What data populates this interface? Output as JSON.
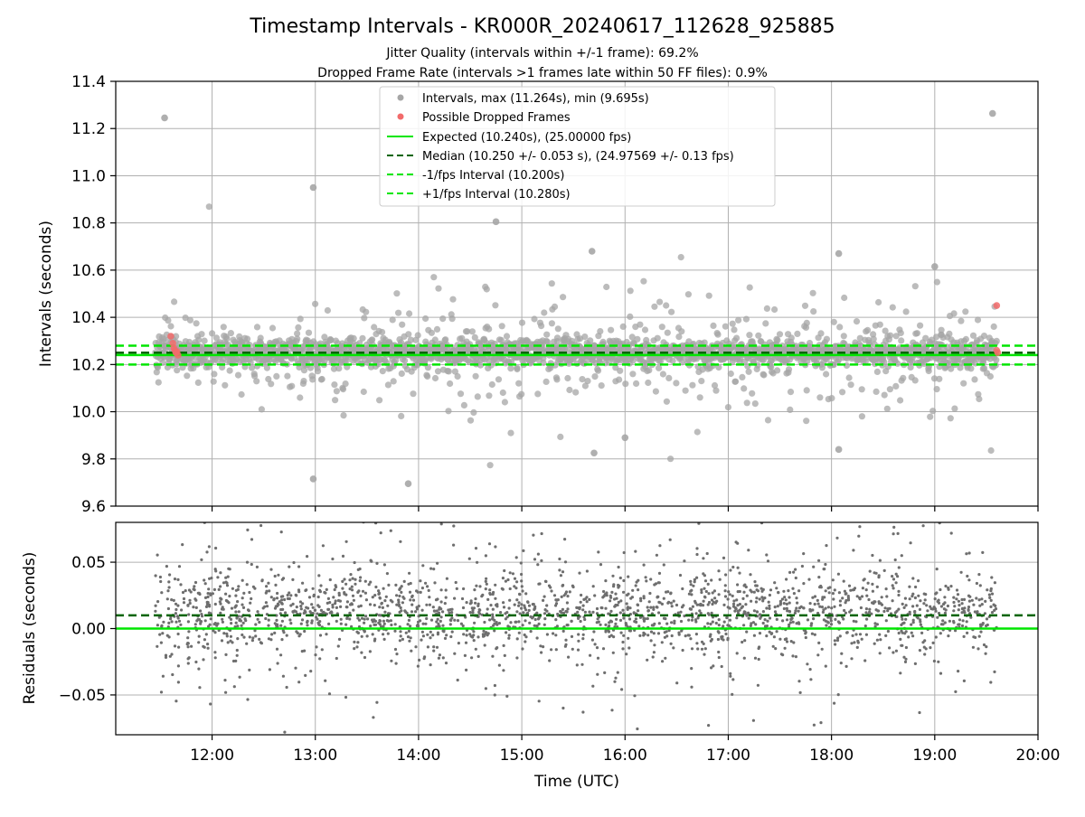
{
  "figure": {
    "title": "Timestamp Intervals - KR000R_20240617_112628_925885",
    "subtitle_1": "Jitter Quality (intervals within +/-1 frame): 69.2%",
    "subtitle_2": "Dropped Frame Rate (intervals >1 frames late within 50 FF files): 0.9%"
  },
  "chart_data": [
    {
      "type": "scatter",
      "panel": "top",
      "xlabel": "",
      "ylabel": "Intervals (seconds)",
      "xlim": [
        11.0667,
        20.0
      ],
      "ylim": [
        9.6,
        11.4
      ],
      "yticks": [
        9.6,
        9.8,
        10.0,
        10.2,
        10.4,
        10.6,
        10.8,
        11.0,
        11.2,
        11.4
      ],
      "ytick_labels": [
        "9.6",
        "9.8",
        "10.0",
        "10.2",
        "10.4",
        "10.6",
        "10.8",
        "11.0",
        "11.2",
        "11.4"
      ],
      "xticks": [
        12,
        13,
        14,
        15,
        16,
        17,
        18,
        19,
        20
      ],
      "xtick_labels": [
        "",
        "",
        "",
        "",
        "",
        "",
        "",
        "",
        ""
      ],
      "grid": true,
      "legend_position": "top-center",
      "data_start_hour": 11.45,
      "data_end_hour": 19.6,
      "intervals_stats": {
        "max": 11.264,
        "min": 9.695,
        "median": 10.25,
        "std": 0.053
      },
      "series": [
        {
          "name": "Intervals, max (11.264s), min (9.695s)",
          "kind": "scatter",
          "color": "#a6a6a6"
        },
        {
          "name": "Possible Dropped Frames",
          "kind": "scatter",
          "color": "#f26b6b"
        },
        {
          "name": "Expected (10.240s), (25.00000 fps)",
          "kind": "hline",
          "value": 10.24,
          "color": "#00e600",
          "style": "solid"
        },
        {
          "name": "Median (10.250 +/- 0.053 s), (24.97569 +/- 0.13 fps)",
          "kind": "hline",
          "value": 10.25,
          "color": "#006400",
          "style": "dashed"
        },
        {
          "name": "-1/fps Interval (10.200s)",
          "kind": "hline",
          "value": 10.2,
          "color": "#00e600",
          "style": "dashed"
        },
        {
          "name": "+1/fps Interval (10.280s)",
          "kind": "hline",
          "value": 10.28,
          "color": "#00e600",
          "style": "dashed"
        }
      ],
      "notable_points": [
        {
          "x": 11.54,
          "y": 11.245
        },
        {
          "x": 19.56,
          "y": 11.264
        },
        {
          "x": 12.98,
          "y": 10.95
        },
        {
          "x": 14.75,
          "y": 10.805
        },
        {
          "x": 13.9,
          "y": 9.695
        },
        {
          "x": 12.98,
          "y": 9.715
        },
        {
          "x": 18.07,
          "y": 10.67
        },
        {
          "x": 18.07,
          "y": 9.84
        },
        {
          "x": 19.0,
          "y": 10.615
        },
        {
          "x": 15.68,
          "y": 10.68
        },
        {
          "x": 15.7,
          "y": 9.825
        },
        {
          "x": 16.0,
          "y": 9.89
        }
      ],
      "dropped_frames": [
        {
          "x": 11.6,
          "y": 10.32
        },
        {
          "x": 11.62,
          "y": 10.29
        },
        {
          "x": 11.63,
          "y": 10.27
        },
        {
          "x": 11.64,
          "y": 10.26
        },
        {
          "x": 11.65,
          "y": 10.25
        },
        {
          "x": 11.66,
          "y": 10.255
        },
        {
          "x": 11.67,
          "y": 10.24
        },
        {
          "x": 19.6,
          "y": 10.45
        },
        {
          "x": 19.6,
          "y": 10.26
        },
        {
          "x": 19.61,
          "y": 10.25
        }
      ]
    },
    {
      "type": "scatter",
      "panel": "bottom",
      "xlabel": "Time (UTC)",
      "ylabel": "Residuals (seconds)",
      "xlim": [
        11.0667,
        20.0
      ],
      "ylim": [
        -0.08,
        0.08
      ],
      "yticks": [
        -0.05,
        0.0,
        0.05
      ],
      "ytick_labels": [
        "−0.05",
        "0.00",
        "0.05"
      ],
      "xticks": [
        12,
        13,
        14,
        15,
        16,
        17,
        18,
        19,
        20
      ],
      "xtick_labels": [
        "12:00",
        "13:00",
        "14:00",
        "15:00",
        "16:00",
        "17:00",
        "18:00",
        "19:00",
        "20:00"
      ],
      "grid": true,
      "reference_lines": [
        {
          "value": 0.0,
          "color": "#00e600",
          "style": "solid"
        },
        {
          "value": 0.01,
          "color": "#006400",
          "style": "dashed"
        }
      ],
      "point_color": "#6e6e6e"
    }
  ],
  "colors": {
    "gray_points": "#a6a6a6",
    "residual_points": "#6e6e6e",
    "dropped": "#f26b6b",
    "expected": "#00e600",
    "median": "#006400"
  }
}
